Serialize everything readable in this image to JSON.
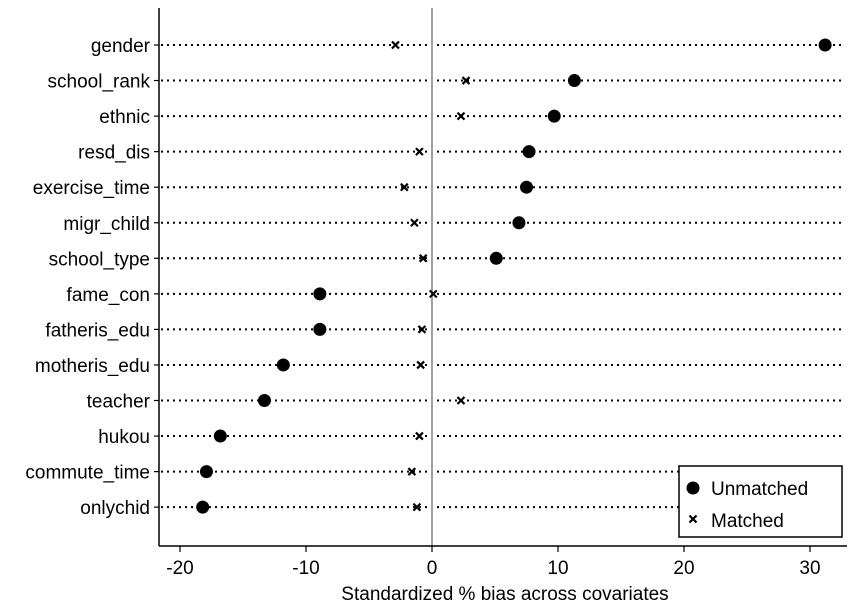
{
  "chart_data": {
    "type": "scatter",
    "orientation": "horizontal-dot-plot",
    "title": "",
    "xlabel": "Standardized % bias across covariates",
    "ylabel": "",
    "xlim": [
      -22,
      33
    ],
    "xticks": [
      -20,
      -10,
      0,
      10,
      20,
      30
    ],
    "reference_line_x": 0,
    "grid": "dotted horizontal guide per category",
    "legend_position": "bottom-right",
    "categories": [
      "gender",
      "school_rank",
      "ethnic",
      "resd_dis",
      "exercise_time",
      "migr_child",
      "school_type",
      "fame_con",
      "fatheris_edu",
      "motheris_edu",
      "teacher",
      "hukou",
      "commute_time",
      "onlychid"
    ],
    "series": [
      {
        "name": "Unmatched",
        "marker": "circle",
        "color": "#000000",
        "values": [
          31.2,
          11.3,
          9.7,
          7.7,
          7.5,
          6.9,
          5.1,
          -8.9,
          -8.9,
          -11.8,
          -13.3,
          -16.8,
          -17.9,
          -18.2
        ]
      },
      {
        "name": "Matched",
        "marker": "x",
        "color": "#000000",
        "values": [
          -2.9,
          2.7,
          2.3,
          -1.0,
          -2.2,
          -1.4,
          -0.7,
          0.1,
          -0.8,
          -0.9,
          2.3,
          -1.0,
          -1.6,
          -1.2
        ]
      }
    ]
  }
}
